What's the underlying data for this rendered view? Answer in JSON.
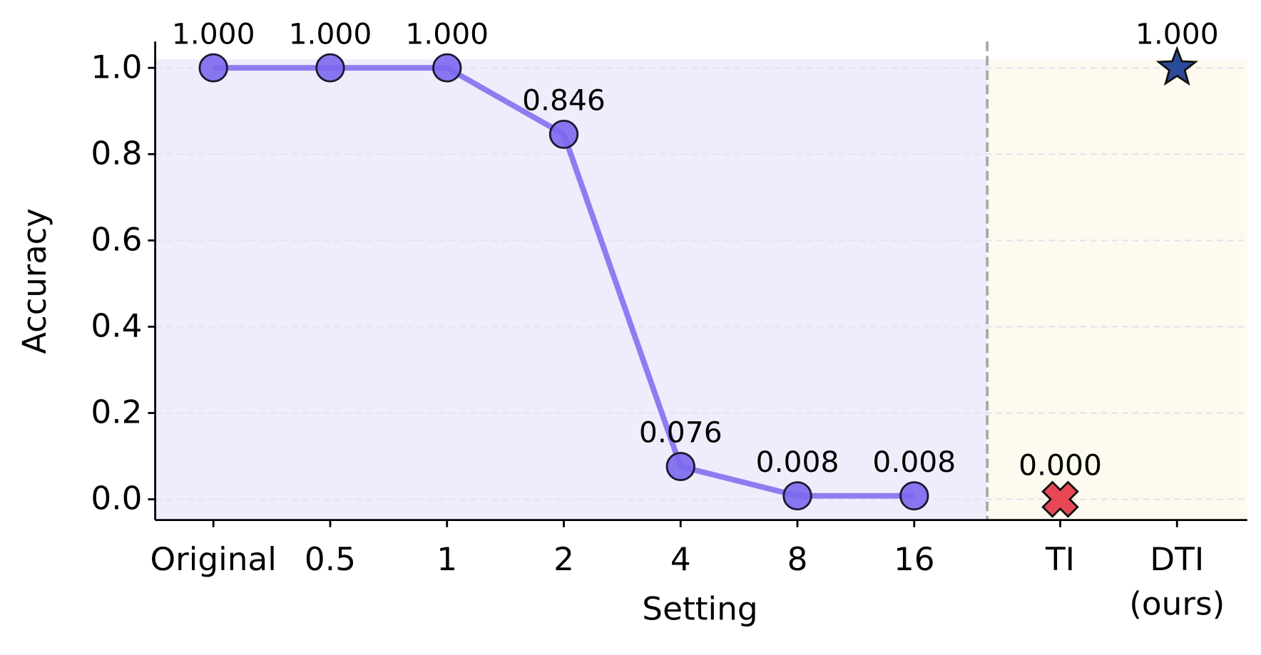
{
  "chart_data": {
    "type": "line",
    "x_label": "Setting",
    "y_label": "Accuracy",
    "categories": [
      "Original",
      "0.5",
      "1",
      "2",
      "4",
      "8",
      "16",
      "TI",
      "DTI\n(ours)"
    ],
    "series": [
      {
        "color": "#7b68ee",
        "marker": "circle",
        "values": [
          1,
          1,
          1,
          0.846,
          0.076,
          0.008,
          0.008,
          null,
          null
        ],
        "value_labels": [
          "1.000",
          "1.000",
          "1.000",
          "0.846",
          "0.076",
          "0.008",
          "0.008",
          null,
          null
        ]
      },
      {
        "color": "#e84855",
        "marker": "x",
        "values": [
          null,
          null,
          null,
          null,
          null,
          null,
          null,
          0,
          null
        ],
        "value_labels": [
          null,
          null,
          null,
          null,
          null,
          null,
          null,
          "0.000",
          null
        ]
      },
      {
        "color": "#2b4a9b",
        "marker": "star",
        "values": [
          null,
          null,
          null,
          null,
          null,
          null,
          null,
          null,
          1
        ],
        "value_labels": [
          null,
          null,
          null,
          null,
          null,
          null,
          null,
          null,
          "1.000"
        ]
      }
    ],
    "ylim": [
      -0.048,
      1.061
    ],
    "yticks": [
      {
        "value": 0,
        "label": "0.0"
      },
      0.2,
      0.4,
      0.6,
      0.8,
      {
        "value": 1,
        "label": "1.0"
      }
    ],
    "grid": true
  }
}
